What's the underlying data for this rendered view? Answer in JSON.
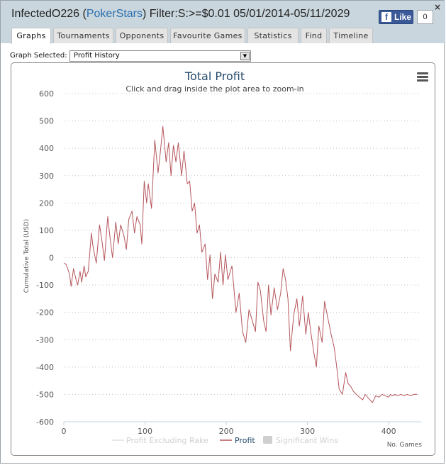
{
  "window": {
    "player": "InfectedO226",
    "site": "PokerStars",
    "filter": "Filter:S:>=$0.01 05/01/2014-05/11/2029",
    "close_label": "×"
  },
  "facebook": {
    "like_label": "Like",
    "f_label": "f",
    "count": "0"
  },
  "tabs": [
    {
      "label": "Graphs",
      "active": true
    },
    {
      "label": "Tournaments",
      "active": false
    },
    {
      "label": "Opponents",
      "active": false
    },
    {
      "label": "Favourite Games",
      "active": false
    },
    {
      "label": "Statistics",
      "active": false
    },
    {
      "label": "Find",
      "active": false
    },
    {
      "label": "Timeline",
      "active": false
    }
  ],
  "graph_selector": {
    "label": "Graph Selected:",
    "value": "Profit History"
  },
  "chart_data": {
    "type": "line",
    "title": "Total Profit",
    "subtitle": "Click and drag inside the plot area to zoom-in",
    "ylabel": "Cumulative Total (USD)",
    "xlabel": "No. Games",
    "xlim": [
      0,
      440
    ],
    "ylim": [
      -600,
      600
    ],
    "xticks": [
      0,
      100,
      200,
      300,
      400
    ],
    "yticks": [
      -600,
      -500,
      -400,
      -300,
      -200,
      -100,
      0,
      100,
      200,
      300,
      400,
      500,
      600
    ],
    "grid": true,
    "legend_position": "bottom-center",
    "legend": [
      {
        "name": "Profit Excluding Rake",
        "color": "#e0e0e0",
        "shape": "line"
      },
      {
        "name": "Profit",
        "color": "#b5565c",
        "shape": "line"
      },
      {
        "name": "Significant Wins",
        "color": "#cfcfcf",
        "shape": "rect"
      }
    ],
    "series": [
      {
        "name": "Profit",
        "color": "#b5565c",
        "x": [
          0,
          3,
          7,
          9,
          12,
          15,
          17,
          20,
          22,
          25,
          27,
          30,
          32,
          34,
          36,
          40,
          44,
          47,
          50,
          54,
          57,
          60,
          64,
          67,
          70,
          74,
          77,
          80,
          84,
          87,
          90,
          94,
          96,
          99,
          102,
          104,
          108,
          112,
          116,
          119,
          122,
          126,
          129,
          132,
          135,
          138,
          141,
          145,
          148,
          152,
          155,
          158,
          161,
          164,
          167,
          170,
          174,
          177,
          180,
          183,
          186,
          190,
          193,
          196,
          199,
          202,
          207,
          212,
          216,
          220,
          224,
          228,
          232,
          236,
          239,
          242,
          246,
          249,
          252,
          255,
          259,
          263,
          267,
          270,
          273,
          276,
          279,
          283,
          287,
          290,
          294,
          298,
          301,
          304,
          308,
          311,
          314,
          318,
          321,
          325,
          329,
          333,
          336,
          339,
          343,
          347,
          350,
          353,
          357,
          360,
          364,
          368,
          371,
          374,
          377,
          380,
          384,
          388,
          392,
          396,
          400,
          402,
          405,
          408,
          411,
          415,
          419,
          423,
          427,
          431,
          435
        ],
        "y": [
          -20,
          -25,
          -60,
          -105,
          -40,
          -80,
          -100,
          -50,
          -90,
          -30,
          -70,
          -50,
          20,
          90,
          40,
          -20,
          120,
          60,
          -10,
          150,
          70,
          0,
          130,
          50,
          120,
          80,
          30,
          140,
          170,
          90,
          150,
          120,
          50,
          280,
          200,
          270,
          180,
          430,
          310,
          390,
          480,
          350,
          420,
          300,
          410,
          350,
          420,
          300,
          390,
          270,
          280,
          170,
          200,
          90,
          120,
          20,
          50,
          -80,
          10,
          -150,
          -60,
          -90,
          20,
          -100,
          10,
          -80,
          -30,
          -200,
          -130,
          -270,
          -310,
          -190,
          -230,
          -270,
          -90,
          -120,
          -230,
          -270,
          -100,
          -210,
          -110,
          -190,
          -130,
          -40,
          -80,
          -150,
          -340,
          -210,
          -150,
          -250,
          -140,
          -280,
          -200,
          -270,
          -350,
          -400,
          -250,
          -310,
          -160,
          -220,
          -280,
          -330,
          -400,
          -480,
          -500,
          -420,
          -460,
          -470,
          -490,
          -500,
          -510,
          -520,
          -500,
          -510,
          -520,
          -530,
          -505,
          -510,
          -500,
          -505,
          -510,
          -500,
          -505,
          -500,
          -505,
          -500,
          -505,
          -500,
          -505,
          -500,
          -500
        ]
      }
    ]
  }
}
